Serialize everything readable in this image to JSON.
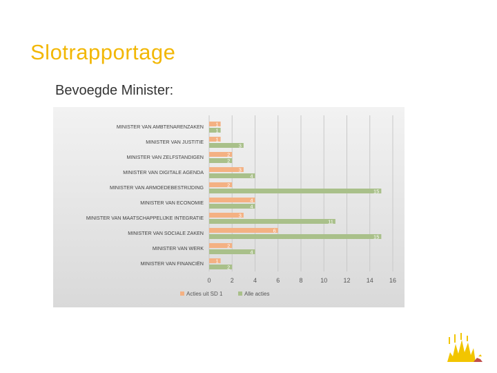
{
  "slide": {
    "title": "Slotrapportage",
    "subtitle": "Bevoegde Minister:"
  },
  "colors": {
    "title": "#f2b705",
    "series_orange": "#f4b183",
    "series_green": "#a9c08a"
  },
  "chart_data": {
    "type": "bar",
    "orientation": "horizontal",
    "categories": [
      "MINISTER VAN AMBTENARENZAKEN",
      "MINISTER VAN JUSTITIE",
      "MINISTER VAN ZELFSTANDIGEN",
      "MINISTER VAN DIGITALE AGENDA",
      "MINISTER VAN ARMOEDEBESTRIJDING",
      "MINISTER VAN ECONOMIE",
      "MINISTER VAN MAATSCHAPPELIJKE INTEGRATIE",
      "MINISTER VAN SOCIALE ZAKEN",
      "MINISTER VAN WERK",
      "MINISTER VAN FINANCIËN"
    ],
    "series": [
      {
        "name": "Acties uit SD 1",
        "color": "#f4b183",
        "values": [
          1,
          1,
          2,
          3,
          2,
          4,
          3,
          6,
          2,
          1
        ]
      },
      {
        "name": "Alle acties",
        "color": "#a9c08a",
        "values": [
          1,
          3,
          2,
          4,
          15,
          4,
          11,
          15,
          4,
          2
        ]
      }
    ],
    "xlim": [
      0,
      16
    ],
    "xticks": [
      0,
      2,
      4,
      6,
      8,
      10,
      12,
      14,
      16
    ],
    "grid": true,
    "legend": "bottom",
    "data_labels": true
  }
}
